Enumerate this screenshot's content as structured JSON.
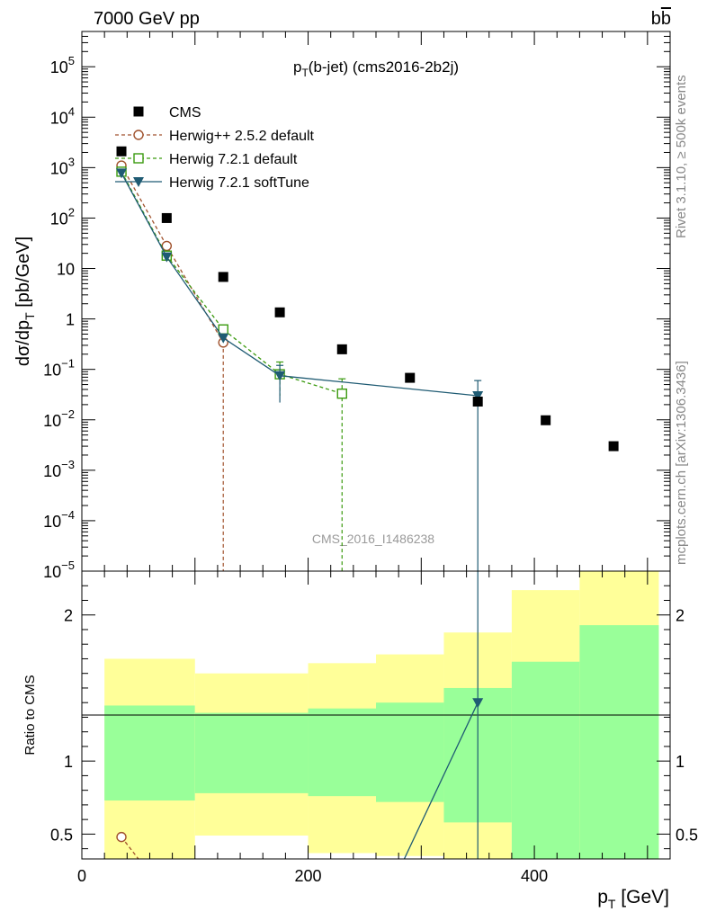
{
  "header": {
    "left_label": "7000 GeV pp",
    "right_label": "b",
    "right_label_bar": "b"
  },
  "side_labels": {
    "rivet": "Rivet 3.1.10, ≥ 500k events",
    "mcplots": "mcplots.cern.ch [arXiv:1306.3436]"
  },
  "colors": {
    "cms": "#000000",
    "herwigpp": "#a0522d",
    "herwig72": "#3a9a0e",
    "softtune": "#1f5b73",
    "band_inner": "#99ff99",
    "band_outer": "#ffff99"
  },
  "chart_data": [
    {
      "type": "scatter",
      "panel": "main",
      "title_main": "p",
      "title_sub": "T",
      "title_rest": "(b-jet) (cms2016-2b2j)",
      "ylabel_main": "dσ/dp",
      "ylabel_sub": "T",
      "ylabel_rest": " [pb/GeV]",
      "yscale": "log",
      "ylim": [
        1e-05,
        500000
      ],
      "xlim": [
        0,
        520
      ],
      "watermark": "CMS_2016_I1486238",
      "ytick_labels": [
        {
          "v": 100000.0,
          "base": "10",
          "exp": "5"
        },
        {
          "v": 10000.0,
          "base": "10",
          "exp": "4"
        },
        {
          "v": 1000.0,
          "base": "10",
          "exp": "3"
        },
        {
          "v": 100.0,
          "base": "10",
          "exp": "2"
        },
        {
          "v": 10,
          "base": "10",
          "exp": ""
        },
        {
          "v": 1,
          "base": "1",
          "exp": ""
        },
        {
          "v": 0.1,
          "base": "10",
          "exp": "−1"
        },
        {
          "v": 0.01,
          "base": "10",
          "exp": "−2"
        },
        {
          "v": 0.001,
          "base": "10",
          "exp": "−3"
        },
        {
          "v": 0.0001,
          "base": "10",
          "exp": "−4"
        },
        {
          "v": 1e-05,
          "base": "10",
          "exp": "−5"
        }
      ],
      "legend": [
        {
          "key": "cms",
          "label": "CMS"
        },
        {
          "key": "herwigpp",
          "label": "Herwig++ 2.5.2 default"
        },
        {
          "key": "herwig72",
          "label": "Herwig 7.2.1 default"
        },
        {
          "key": "softtune",
          "label": "Herwig 7.2.1 softTune"
        }
      ],
      "cms": {
        "x": [
          35,
          75,
          125,
          175,
          230,
          290,
          350,
          410,
          470
        ],
        "y": [
          2100,
          100,
          6.8,
          1.35,
          0.25,
          0.068,
          0.023,
          0.0098,
          0.003
        ]
      },
      "herwigpp": {
        "x": [
          35,
          75,
          125
        ],
        "y": [
          1100,
          28,
          0.34
        ],
        "y_low": [
          1100,
          28,
          1e-06
        ],
        "y_high": [
          1100,
          28,
          0.34
        ]
      },
      "herwig72": {
        "x": [
          35,
          75,
          125,
          175,
          230
        ],
        "y": [
          830,
          18,
          0.62,
          0.08,
          0.033
        ],
        "y_low": [
          830,
          18,
          0.62,
          0.03,
          1e-06
        ],
        "y_high": [
          830,
          18,
          0.62,
          0.14,
          0.065
        ]
      },
      "softtune": {
        "x": [
          35,
          75,
          125,
          175,
          350
        ],
        "y": [
          780,
          17,
          0.42,
          0.075,
          0.03
        ],
        "y_low": [
          780,
          17,
          0.42,
          0.022,
          1e-06
        ],
        "y_high": [
          780,
          17,
          0.42,
          0.12,
          0.06
        ]
      }
    },
    {
      "type": "line",
      "panel": "ratio",
      "ylabel": "Ratio to CMS",
      "xlabel_main": "p",
      "xlabel_sub": "T",
      "xlabel_rest": " [GeV]",
      "xlim": [
        0,
        520
      ],
      "ylim": [
        0.33,
        2.3
      ],
      "xticks": [
        0,
        200,
        400
      ],
      "yticks": [
        0.5,
        1,
        2
      ],
      "bins": [
        {
          "lo": 20,
          "hi": 100,
          "inner": [
            0.73,
            1.38
          ],
          "outer": [
            0.33,
            1.7
          ]
        },
        {
          "lo": 100,
          "hi": 200,
          "inner": [
            0.78,
            1.33
          ],
          "outer": [
            0.49,
            1.6
          ]
        },
        {
          "lo": 200,
          "hi": 260,
          "inner": [
            0.76,
            1.36
          ],
          "outer": [
            0.37,
            1.67
          ]
        },
        {
          "lo": 260,
          "hi": 320,
          "inner": [
            0.72,
            1.4
          ],
          "outer": [
            0.35,
            1.73
          ]
        },
        {
          "lo": 320,
          "hi": 380,
          "inner": [
            0.58,
            1.5
          ],
          "outer": [
            0.33,
            1.88
          ]
        },
        {
          "lo": 380,
          "hi": 440,
          "inner": [
            0.33,
            1.68
          ],
          "outer": [
            0.33,
            2.17
          ]
        },
        {
          "lo": 440,
          "hi": 510,
          "inner": [
            0.33,
            1.93
          ],
          "outer": [
            0.33,
            2.3
          ]
        }
      ],
      "herwigpp": {
        "x": [
          35,
          50
        ],
        "y": [
          0.48,
          0.33
        ]
      },
      "softtune": {
        "x": [
          285,
          350
        ],
        "y": [
          0.33,
          1.4
        ],
        "marker_index": 1
      }
    }
  ]
}
